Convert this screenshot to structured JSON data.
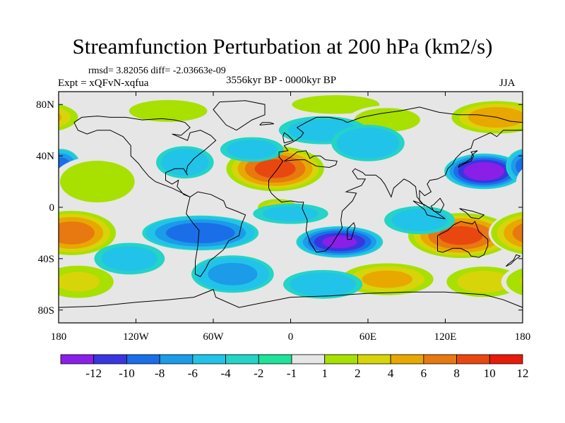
{
  "chart_data": {
    "type": "heatmap",
    "title": "Streamfunction Perturbation at 200 hPa (km2/s)",
    "stats_text": "rmsd= 3.82056 diff= -2.03663e-09",
    "experiment_text": "Expt = xQFvN-xqfua",
    "period_text": "3556kyr BP - 0000kyr BP",
    "season_text": "JJA",
    "xlim": [
      -180,
      180
    ],
    "ylim": [
      -90,
      90
    ],
    "x_ticks": [
      {
        "value": -180,
        "label": "180"
      },
      {
        "value": -120,
        "label": "120W"
      },
      {
        "value": -60,
        "label": "60W"
      },
      {
        "value": 0,
        "label": "0"
      },
      {
        "value": 60,
        "label": "60E"
      },
      {
        "value": 120,
        "label": "120E"
      },
      {
        "value": 180,
        "label": "180"
      }
    ],
    "y_ticks": [
      {
        "value": 80,
        "label": "80N"
      },
      {
        "value": 40,
        "label": "40N"
      },
      {
        "value": 0,
        "label": "0"
      },
      {
        "value": -40,
        "label": "40S"
      },
      {
        "value": -80,
        "label": "80S"
      }
    ],
    "contour_levels": [
      -12,
      -10,
      -8,
      -6,
      -4,
      -2,
      -1,
      1,
      2,
      4,
      6,
      8,
      10,
      12
    ],
    "colorbar_labels": [
      "-12",
      "-10",
      "-8",
      "-6",
      "-4",
      "-2",
      "-1",
      "1",
      "2",
      "4",
      "6",
      "8",
      "10",
      "12"
    ],
    "colors": [
      "#8a1fe8",
      "#3a35e0",
      "#1a6fe8",
      "#1b9be8",
      "#22c3e8",
      "#23d4c7",
      "#1ee39b",
      "#e6e6e6",
      "#a8e000",
      "#d7d40a",
      "#e8a800",
      "#e87810",
      "#e84810",
      "#e81a0a"
    ],
    "anomaly_centers": [
      {
        "lon": -12,
        "lat": 30,
        "value": 10.5,
        "extent_lon": 26,
        "extent_lat": 12
      },
      {
        "lon": 132,
        "lat": -22,
        "value": 10.5,
        "extent_lon": 28,
        "extent_lat": 12
      },
      {
        "lon": -170,
        "lat": -20,
        "value": 9,
        "extent_lon": 24,
        "extent_lat": 12
      },
      {
        "lon": 150,
        "lat": 28,
        "value": -12,
        "extent_lon": 20,
        "extent_lat": 9
      },
      {
        "lon": 38,
        "lat": -27,
        "value": -10.5,
        "extent_lon": 22,
        "extent_lat": 8
      },
      {
        "lon": -70,
        "lat": -20,
        "value": -7.5,
        "extent_lon": 30,
        "extent_lat": 9
      },
      {
        "lon": -178,
        "lat": 32,
        "value": -6.5,
        "extent_lon": 10,
        "extent_lat": 9
      },
      {
        "lon": -10,
        "lat": 0,
        "value": 4.5,
        "extent_lon": 12,
        "extent_lat": 5
      },
      {
        "lon": 75,
        "lat": -56,
        "value": 6.5,
        "extent_lon": 26,
        "extent_lat": 9
      },
      {
        "lon": 150,
        "lat": -58,
        "value": 5,
        "extent_lon": 22,
        "extent_lat": 9
      },
      {
        "lon": -165,
        "lat": -58,
        "value": 4,
        "extent_lon": 22,
        "extent_lat": 10
      },
      {
        "lon": -150,
        "lat": 20,
        "value": 3,
        "extent_lon": 25,
        "extent_lat": 14
      },
      {
        "lon": 160,
        "lat": 70,
        "value": 7.5,
        "extent_lon": 25,
        "extent_lat": 9
      },
      {
        "lon": 35,
        "lat": 80,
        "value": 3.5,
        "extent_lon": 28,
        "extent_lat": 6
      },
      {
        "lon": 75,
        "lat": 68,
        "value": 3,
        "extent_lon": 22,
        "extent_lat": 8
      },
      {
        "lon": -95,
        "lat": 75,
        "value": 3.5,
        "extent_lon": 25,
        "extent_lat": 7
      },
      {
        "lon": -82,
        "lat": 35,
        "value": -3,
        "extent_lon": 16,
        "extent_lat": 9
      },
      {
        "lon": -30,
        "lat": 45,
        "value": -2.5,
        "extent_lon": 18,
        "extent_lat": 7
      },
      {
        "lon": 25,
        "lat": 60,
        "value": -2.5,
        "extent_lon": 25,
        "extent_lat": 8
      },
      {
        "lon": 60,
        "lat": 50,
        "value": -3.5,
        "extent_lon": 20,
        "extent_lat": 10
      },
      {
        "lon": 100,
        "lat": -10,
        "value": -2.5,
        "extent_lon": 20,
        "extent_lat": 8
      },
      {
        "lon": -45,
        "lat": -52,
        "value": -4.5,
        "extent_lon": 22,
        "extent_lat": 10
      },
      {
        "lon": 25,
        "lat": -60,
        "value": -3,
        "extent_lon": 22,
        "extent_lat": 8
      },
      {
        "lon": -125,
        "lat": -40,
        "value": -2.5,
        "extent_lon": 20,
        "extent_lat": 9
      },
      {
        "lon": 0,
        "lat": -5,
        "value": -2,
        "extent_lon": 22,
        "extent_lat": 6
      }
    ]
  }
}
